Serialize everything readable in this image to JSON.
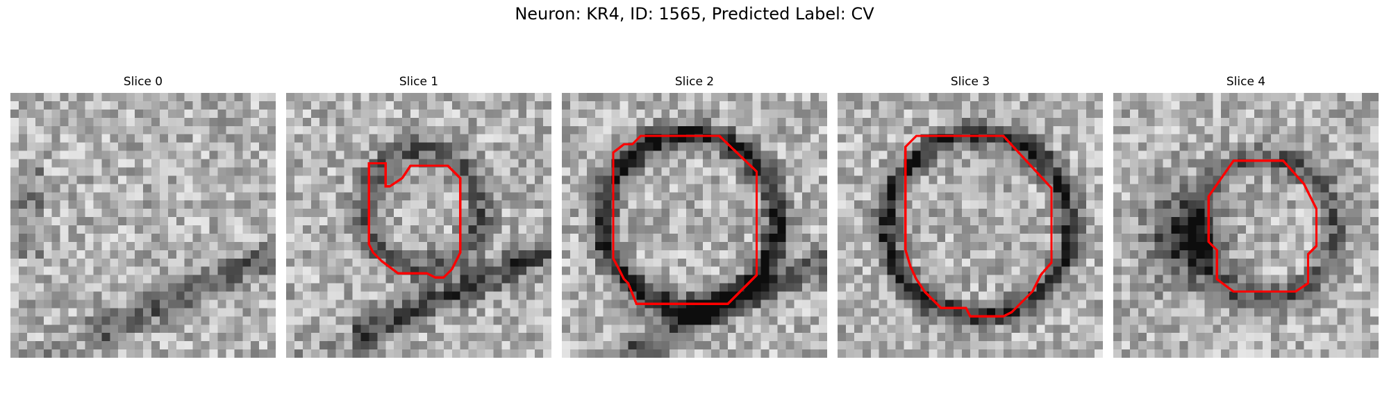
{
  "figure": {
    "title": "Neuron: KR4, ID: 1565, Predicted Label: CV"
  },
  "colors": {
    "contour": "#ff0000",
    "background": "#ffffff",
    "colormap": "grayscale"
  },
  "panels": [
    {
      "title": "Slice 0",
      "has_contour": false
    },
    {
      "title": "Slice 1",
      "has_contour": true
    },
    {
      "title": "Slice 2",
      "has_contour": true
    },
    {
      "title": "Slice 3",
      "has_contour": true
    },
    {
      "title": "Slice 4",
      "has_contour": true
    }
  ]
}
